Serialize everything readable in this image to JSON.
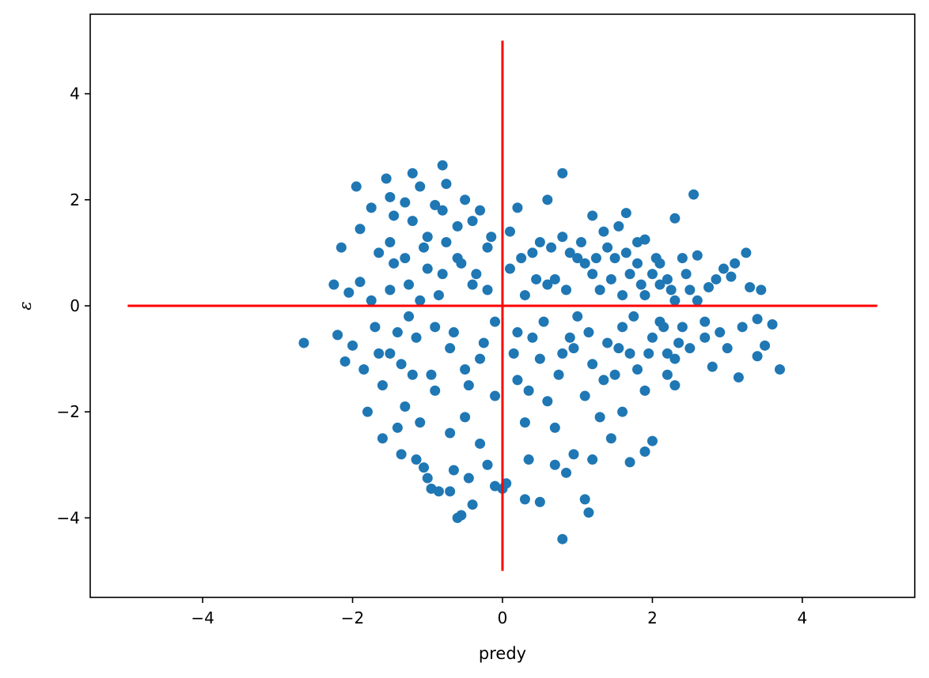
{
  "chart_data": {
    "type": "scatter",
    "title": "",
    "xlabel": "predy",
    "ylabel": "ε",
    "xlim": [
      -5.5,
      5.5
    ],
    "ylim": [
      -5.5,
      5.5
    ],
    "xticks": [
      -4,
      -2,
      0,
      2,
      4
    ],
    "yticks": [
      -4,
      -2,
      0,
      2,
      4
    ],
    "xtick_labels": [
      "−4",
      "−2",
      "0",
      "2",
      "4"
    ],
    "ytick_labels": [
      "−4",
      "−2",
      "0",
      "2",
      "4"
    ],
    "grid": false,
    "colors": {
      "points": "#1f77b4",
      "reference_lines": "#ff0000",
      "axes": "#000000"
    },
    "reference_lines": [
      {
        "orientation": "horizontal",
        "y": 0,
        "x_range": [
          -5,
          5
        ]
      },
      {
        "orientation": "vertical",
        "x": 0,
        "y_range": [
          -5,
          5
        ]
      }
    ],
    "series": [
      {
        "points": [
          [
            -2.65,
            -0.7
          ],
          [
            -2.25,
            0.4
          ],
          [
            -2.2,
            -0.55
          ],
          [
            -2.15,
            1.1
          ],
          [
            -2.1,
            -1.05
          ],
          [
            -2.05,
            0.25
          ],
          [
            -2.0,
            -0.75
          ],
          [
            -1.95,
            2.25
          ],
          [
            -1.9,
            1.45
          ],
          [
            -1.9,
            0.45
          ],
          [
            -1.85,
            -1.2
          ],
          [
            -1.8,
            -2.0
          ],
          [
            -1.75,
            1.85
          ],
          [
            -1.7,
            -0.4
          ],
          [
            -1.65,
            1.0
          ],
          [
            -1.6,
            -2.5
          ],
          [
            -1.55,
            2.4
          ],
          [
            -1.5,
            2.05
          ],
          [
            -1.5,
            -0.9
          ],
          [
            -1.45,
            1.7
          ],
          [
            -1.4,
            -2.3
          ],
          [
            -1.35,
            -2.8
          ],
          [
            -1.3,
            1.95
          ],
          [
            -1.25,
            -0.2
          ],
          [
            -1.2,
            2.5
          ],
          [
            -1.15,
            -2.9
          ],
          [
            -1.1,
            2.25
          ],
          [
            -1.05,
            -3.05
          ],
          [
            -1.0,
            -3.25
          ],
          [
            -0.95,
            -3.45
          ],
          [
            -0.9,
            1.9
          ],
          [
            -0.85,
            -3.5
          ],
          [
            -0.8,
            2.65
          ],
          [
            -0.75,
            2.3
          ],
          [
            -0.7,
            -3.5
          ],
          [
            -0.65,
            -3.1
          ],
          [
            -0.6,
            -4.0
          ],
          [
            -0.55,
            -3.95
          ],
          [
            -0.5,
            2.0
          ],
          [
            -0.45,
            -3.25
          ],
          [
            -0.4,
            -3.75
          ],
          [
            -0.3,
            1.8
          ],
          [
            -0.2,
            -3.0
          ],
          [
            -0.1,
            -3.4
          ],
          [
            0.0,
            -3.45
          ],
          [
            0.05,
            -3.35
          ],
          [
            0.2,
            1.85
          ],
          [
            0.3,
            -3.65
          ],
          [
            0.35,
            -2.9
          ],
          [
            0.5,
            -3.7
          ],
          [
            0.6,
            2.0
          ],
          [
            0.7,
            -3.0
          ],
          [
            0.8,
            2.5
          ],
          [
            0.8,
            -4.4
          ],
          [
            0.85,
            -3.15
          ],
          [
            0.95,
            -2.8
          ],
          [
            1.1,
            -3.65
          ],
          [
            1.15,
            -3.9
          ],
          [
            1.2,
            -2.9
          ],
          [
            1.2,
            1.7
          ],
          [
            1.35,
            1.4
          ],
          [
            1.45,
            -2.5
          ],
          [
            1.55,
            1.5
          ],
          [
            1.6,
            -2.0
          ],
          [
            1.65,
            1.75
          ],
          [
            1.7,
            -2.95
          ],
          [
            1.8,
            1.2
          ],
          [
            1.9,
            -2.75
          ],
          [
            1.9,
            1.25
          ],
          [
            2.0,
            -2.55
          ],
          [
            2.1,
            0.8
          ],
          [
            2.2,
            -1.3
          ],
          [
            2.3,
            1.65
          ],
          [
            2.3,
            -1.5
          ],
          [
            2.4,
            0.9
          ],
          [
            2.5,
            -0.8
          ],
          [
            2.55,
            2.1
          ],
          [
            2.6,
            0.95
          ],
          [
            2.7,
            -0.3
          ],
          [
            2.75,
            0.35
          ],
          [
            2.8,
            -1.15
          ],
          [
            2.85,
            0.5
          ],
          [
            2.9,
            -0.5
          ],
          [
            2.95,
            0.7
          ],
          [
            3.0,
            -0.8
          ],
          [
            3.05,
            0.55
          ],
          [
            3.1,
            0.8
          ],
          [
            3.15,
            -1.35
          ],
          [
            3.2,
            -0.4
          ],
          [
            3.25,
            1.0
          ],
          [
            3.3,
            0.35
          ],
          [
            3.4,
            -0.95
          ],
          [
            3.4,
            -0.25
          ],
          [
            3.45,
            0.3
          ],
          [
            3.5,
            -0.75
          ],
          [
            3.6,
            -0.35
          ],
          [
            3.7,
            -1.2
          ],
          [
            -1.5,
            0.3
          ],
          [
            -1.4,
            -0.5
          ],
          [
            -1.3,
            0.9
          ],
          [
            -1.2,
            -1.3
          ],
          [
            -1.1,
            0.1
          ],
          [
            -1.0,
            1.3
          ],
          [
            -0.9,
            -1.6
          ],
          [
            -0.8,
            0.6
          ],
          [
            -0.7,
            -0.8
          ],
          [
            -0.6,
            1.5
          ],
          [
            -0.5,
            -2.1
          ],
          [
            -0.4,
            0.4
          ],
          [
            -0.3,
            -1.0
          ],
          [
            -0.2,
            1.1
          ],
          [
            -0.1,
            -0.3
          ],
          [
            0.1,
            0.7
          ],
          [
            0.2,
            -1.4
          ],
          [
            0.3,
            0.2
          ],
          [
            0.4,
            -0.6
          ],
          [
            0.5,
            1.2
          ],
          [
            0.6,
            -1.8
          ],
          [
            0.7,
            0.5
          ],
          [
            0.8,
            -0.9
          ],
          [
            0.9,
            1.0
          ],
          [
            1.0,
            -0.2
          ],
          [
            1.1,
            0.8
          ],
          [
            1.2,
            -1.1
          ],
          [
            1.3,
            0.3
          ],
          [
            1.4,
            -0.7
          ],
          [
            1.5,
            0.9
          ],
          [
            1.6,
            -0.4
          ],
          [
            1.7,
            0.6
          ],
          [
            1.8,
            -1.2
          ],
          [
            1.9,
            0.2
          ],
          [
            2.0,
            -0.6
          ],
          [
            2.1,
            0.4
          ],
          [
            2.2,
            -0.9
          ],
          [
            2.3,
            0.1
          ],
          [
            2.4,
            -0.4
          ],
          [
            2.5,
            0.3
          ],
          [
            -1.6,
            -1.5
          ],
          [
            -1.5,
            1.2
          ],
          [
            -1.3,
            -1.9
          ],
          [
            -1.2,
            1.6
          ],
          [
            -1.1,
            -2.2
          ],
          [
            -1.0,
            0.7
          ],
          [
            -0.9,
            -0.4
          ],
          [
            -0.8,
            1.8
          ],
          [
            -0.7,
            -2.4
          ],
          [
            -0.6,
            0.9
          ],
          [
            -0.5,
            -1.2
          ],
          [
            -0.4,
            1.6
          ],
          [
            -0.3,
            -2.6
          ],
          [
            -0.2,
            0.3
          ],
          [
            -0.1,
            -1.7
          ],
          [
            0.1,
            1.4
          ],
          [
            0.2,
            -0.5
          ],
          [
            0.3,
            -2.2
          ],
          [
            0.4,
            1.0
          ],
          [
            0.5,
            -1.0
          ],
          [
            0.6,
            0.4
          ],
          [
            0.7,
            -2.3
          ],
          [
            0.8,
            1.3
          ],
          [
            0.9,
            -0.6
          ],
          [
            1.0,
            0.9
          ],
          [
            1.1,
            -1.7
          ],
          [
            1.2,
            0.6
          ],
          [
            1.3,
            -2.1
          ],
          [
            1.4,
            1.1
          ],
          [
            1.5,
            -1.3
          ],
          [
            1.6,
            0.2
          ],
          [
            1.7,
            -0.9
          ],
          [
            1.8,
            0.8
          ],
          [
            1.9,
            -1.6
          ],
          [
            2.0,
            0.6
          ],
          [
            2.1,
            -0.3
          ],
          [
            2.2,
            0.5
          ],
          [
            2.3,
            -1.0
          ],
          [
            2.6,
            0.1
          ],
          [
            2.7,
            -0.6
          ],
          [
            -1.75,
            0.1
          ],
          [
            -1.65,
            -0.9
          ],
          [
            -1.45,
            0.8
          ],
          [
            -1.35,
            -1.1
          ],
          [
            -1.25,
            0.4
          ],
          [
            -1.15,
            -0.6
          ],
          [
            -1.05,
            1.1
          ],
          [
            -0.95,
            -1.3
          ],
          [
            -0.85,
            0.2
          ],
          [
            -0.75,
            1.2
          ],
          [
            -0.65,
            -0.5
          ],
          [
            -0.55,
            0.8
          ],
          [
            -0.45,
            -1.5
          ],
          [
            -0.35,
            0.6
          ],
          [
            -0.25,
            -0.7
          ],
          [
            -0.15,
            1.3
          ],
          [
            0.15,
            -0.9
          ],
          [
            0.25,
            0.9
          ],
          [
            0.35,
            -1.6
          ],
          [
            0.45,
            0.5
          ],
          [
            0.55,
            -0.3
          ],
          [
            0.65,
            1.1
          ],
          [
            0.75,
            -1.3
          ],
          [
            0.85,
            0.3
          ],
          [
            0.95,
            -0.8
          ],
          [
            1.05,
            1.2
          ],
          [
            1.15,
            -0.5
          ],
          [
            1.25,
            0.9
          ],
          [
            1.35,
            -1.4
          ],
          [
            1.45,
            0.5
          ],
          [
            1.55,
            -0.8
          ],
          [
            1.65,
            1.0
          ],
          [
            1.75,
            -0.2
          ],
          [
            1.85,
            0.4
          ],
          [
            1.95,
            -0.9
          ],
          [
            2.05,
            0.9
          ],
          [
            2.15,
            -0.4
          ],
          [
            2.25,
            0.3
          ],
          [
            2.35,
            -0.7
          ],
          [
            2.45,
            0.6
          ]
        ]
      }
    ]
  }
}
